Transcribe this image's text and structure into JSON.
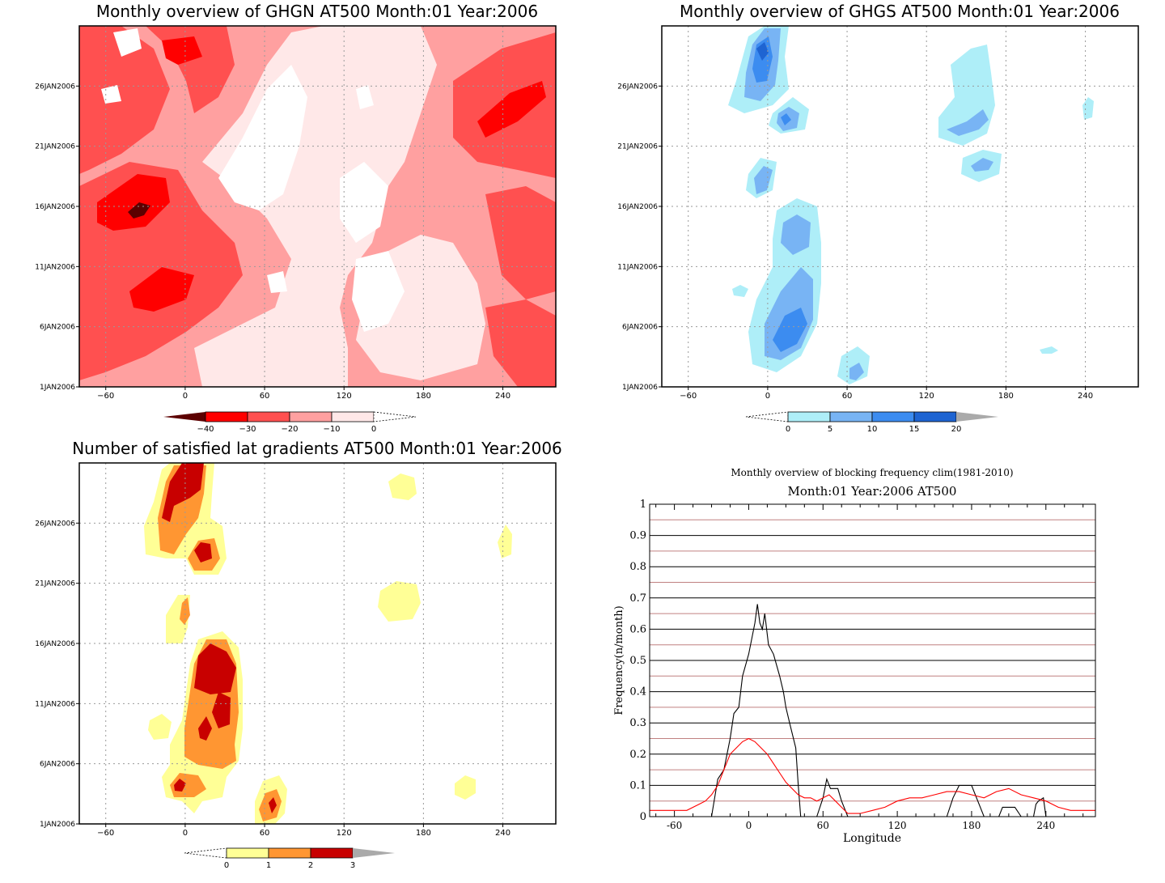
{
  "chart_data": [
    {
      "type": "heatmap",
      "title": "Monthly overview of GHGN AT500 Month:01 Year:2006",
      "x_ticks": [
        -60,
        0,
        60,
        120,
        180,
        240
      ],
      "y_ticks": [
        "1JAN2006",
        "6JAN2006",
        "11JAN2006",
        "16JAN2006",
        "21JAN2006",
        "26JAN2006"
      ],
      "colorbar": {
        "levels": [
          -40,
          -30,
          -20,
          -10,
          0
        ],
        "tick_labels": [
          "-40",
          "-30",
          "-20",
          "-10",
          "0"
        ],
        "colors": [
          "#5c0000",
          "#ff0000",
          "#ff5050",
          "#ffa0a0",
          "#ffe8e8",
          "#ffffff"
        ]
      }
    },
    {
      "type": "heatmap",
      "title": "Monthly overview of GHGS AT500 Month:01 Year:2006",
      "x_ticks": [
        -60,
        0,
        60,
        120,
        180,
        240
      ],
      "y_ticks": [
        "1JAN2006",
        "6JAN2006",
        "11JAN2006",
        "16JAN2006",
        "21JAN2006",
        "26JAN2006"
      ],
      "colorbar": {
        "levels": [
          0,
          5,
          10,
          15,
          20
        ],
        "tick_labels": [
          "0",
          "5",
          "10",
          "15",
          "20"
        ],
        "colors": [
          "#ffffff",
          "#aeeef8",
          "#78b4f4",
          "#3c8cf0",
          "#1e64d2",
          "#aaaaaa"
        ]
      }
    },
    {
      "type": "heatmap",
      "title": "Number of satisfied lat gradients AT500 Month:01 Year:2006",
      "x_ticks": [
        -60,
        0,
        60,
        120,
        180,
        240
      ],
      "y_ticks": [
        "1JAN2006",
        "6JAN2006",
        "11JAN2006",
        "16JAN2006",
        "21JAN2006",
        "26JAN2006"
      ],
      "colorbar": {
        "levels": [
          0,
          1,
          2,
          3
        ],
        "tick_labels": [
          "0",
          "1",
          "2",
          "3"
        ],
        "colors": [
          "#ffffff",
          "#ffff96",
          "#ff9632",
          "#c80000",
          "#aaaaaa"
        ]
      }
    },
    {
      "type": "line",
      "title": "Monthly overview of blocking frequency clim(1981-2010)",
      "subtitle": "Month:01 Year:2006  AT500",
      "xlabel": "Longitude",
      "ylabel": "Frequency(n/month)",
      "x_ticks": [
        -60,
        0,
        60,
        120,
        180,
        240
      ],
      "y_ticks": [
        "0",
        "0.1",
        "0.2",
        "0.3",
        "0.4",
        "0.5",
        "0.6",
        "0.7",
        "0.8",
        "0.9",
        "1"
      ],
      "xlim": [
        -80,
        280
      ],
      "ylim": [
        0,
        1
      ],
      "series": [
        {
          "color": "#000000",
          "x": [
            -80,
            -35,
            -30,
            -25,
            -20,
            -15,
            -12,
            -8,
            -5,
            0,
            5,
            7,
            9,
            11,
            13,
            16,
            20,
            25,
            28,
            30,
            33,
            38,
            40,
            42,
            45,
            50,
            55,
            60,
            63,
            66,
            72,
            75,
            80,
            160,
            165,
            170,
            175,
            180,
            185,
            190,
            195,
            198,
            202,
            205,
            210,
            215,
            220,
            230,
            232,
            234,
            238,
            240,
            280
          ],
          "y": [
            0,
            0,
            0,
            0.12,
            0.15,
            0.25,
            0.33,
            0.35,
            0.45,
            0.52,
            0.62,
            0.68,
            0.62,
            0.6,
            0.65,
            0.55,
            0.52,
            0.45,
            0.4,
            0.35,
            0.3,
            0.22,
            0.1,
            0,
            0,
            0,
            0,
            0.06,
            0.12,
            0.09,
            0.09,
            0.05,
            0,
            0,
            0.06,
            0.1,
            0.1,
            0.1,
            0.05,
            0,
            0,
            0,
            0,
            0.03,
            0.03,
            0.03,
            0,
            0,
            0.04,
            0.05,
            0.06,
            0,
            0
          ]
        },
        {
          "color": "#ff0000",
          "x": [
            -80,
            -60,
            -50,
            -40,
            -35,
            -30,
            -25,
            -20,
            -15,
            -10,
            -5,
            0,
            5,
            10,
            15,
            20,
            25,
            30,
            35,
            40,
            45,
            50,
            55,
            60,
            65,
            70,
            75,
            80,
            90,
            100,
            110,
            120,
            130,
            140,
            150,
            160,
            170,
            180,
            190,
            200,
            210,
            220,
            230,
            240,
            250,
            260,
            270,
            280
          ],
          "y": [
            0.02,
            0.02,
            0.02,
            0.04,
            0.05,
            0.07,
            0.1,
            0.15,
            0.2,
            0.22,
            0.24,
            0.25,
            0.24,
            0.22,
            0.2,
            0.17,
            0.14,
            0.11,
            0.09,
            0.07,
            0.06,
            0.06,
            0.05,
            0.06,
            0.07,
            0.05,
            0.03,
            0.01,
            0.01,
            0.02,
            0.03,
            0.05,
            0.06,
            0.06,
            0.07,
            0.08,
            0.08,
            0.07,
            0.06,
            0.08,
            0.09,
            0.07,
            0.06,
            0.05,
            0.03,
            0.02,
            0.02,
            0.02
          ]
        }
      ]
    }
  ]
}
